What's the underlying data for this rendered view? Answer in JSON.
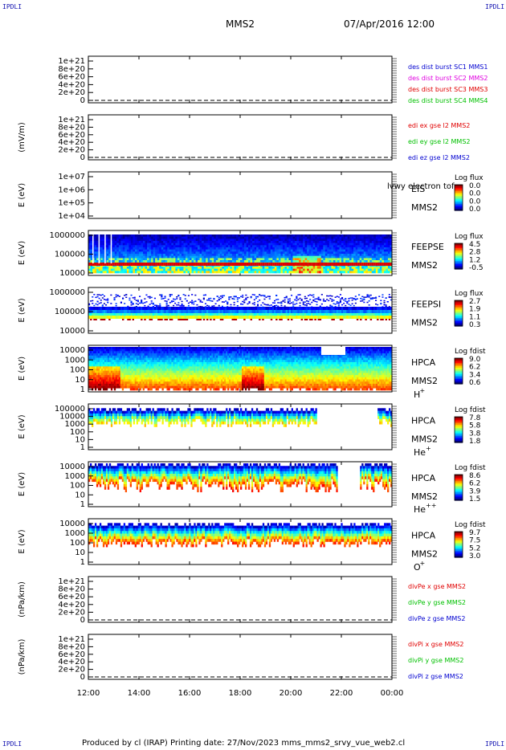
{
  "corners": {
    "tl": "IPDLI",
    "tr": "IPDLI",
    "bl": "IPDLI",
    "br": "IPDLI"
  },
  "header": {
    "spacecraft": "MMS2",
    "datetime": "07/Apr/2016 12:00"
  },
  "footer": {
    "text": "Produced by cl (IRAP)   Printing date: 27/Nov/2023   mms_mms2_srvy_vue_web2.cl"
  },
  "colors": {
    "blue": "#0000d0",
    "magenta": "#e000e0",
    "red": "#e00000",
    "green": "#00c000",
    "mms1": "#0000d0",
    "mms2": "#e000e0",
    "mms3": "#e00000",
    "mms4": "#00c000"
  },
  "chart_data": [
    {
      "id": "des_dist_burst",
      "type": "line",
      "yticks": [
        "1e+21",
        "8e+20",
        "6e+20",
        "4e+20",
        "2e+20",
        "0"
      ],
      "series": [
        {
          "name": "des dist burst SC1 MMS1",
          "color": "#0000d0",
          "values": [
            0,
            0
          ]
        },
        {
          "name": "des dist burst SC2 MMS2",
          "color": "#e000e0",
          "values": [
            0,
            0
          ]
        },
        {
          "name": "des dist burst SC3 MMS3",
          "color": "#e00000",
          "values": [
            0,
            0
          ]
        },
        {
          "name": "des dist burst SC4 MMS4",
          "color": "#00c000",
          "values": [
            0,
            0
          ]
        }
      ]
    },
    {
      "id": "edi_e",
      "type": "line",
      "ylabel": "(mV/m)",
      "yticks": [
        "1e+21",
        "8e+20",
        "6e+20",
        "4e+20",
        "2e+20",
        "0"
      ],
      "series": [
        {
          "name": "edi ex gse l2 MMS2",
          "color": "#e00000",
          "values": [
            0,
            0
          ]
        },
        {
          "name": "edi ey gse l2 MMS2",
          "color": "#00c000",
          "values": [
            0,
            0
          ]
        },
        {
          "name": "edi ez gse l2 MMS2",
          "color": "#0000d0",
          "values": [
            0,
            0
          ]
        }
      ]
    },
    {
      "id": "eis",
      "type": "heatmap",
      "ylabel": "E (eV)",
      "yticks": [
        "1e+07",
        "1e+06",
        "1e+05",
        "1e+04"
      ],
      "labels": [
        "EIS",
        "MMS2"
      ],
      "overlay": "lvwy electron tof",
      "colorbar": {
        "title": "Log flux",
        "ticks": [
          "0.0",
          "0.0",
          "0.0",
          "0.0"
        ]
      }
    },
    {
      "id": "feepse",
      "type": "heatmap",
      "ylabel": "E (eV)",
      "yticks": [
        "1000000",
        "100000",
        "10000"
      ],
      "labels": [
        "FEEPSE",
        "MMS2"
      ],
      "colorbar": {
        "title": "Log flux",
        "ticks": [
          "4.5",
          "2.8",
          "1.2",
          "-0.5"
        ]
      }
    },
    {
      "id": "feepsi",
      "type": "heatmap",
      "ylabel": "E (eV)",
      "yticks": [
        "1000000",
        "100000",
        "10000"
      ],
      "labels": [
        "FEEPSI",
        "MMS2"
      ],
      "colorbar": {
        "title": "Log flux",
        "ticks": [
          "2.7",
          "1.9",
          "1.1",
          "0.3"
        ]
      }
    },
    {
      "id": "hpca_h",
      "type": "heatmap",
      "ylabel": "E (eV)",
      "yticks": [
        "10000",
        "1000",
        "100",
        "10",
        "1"
      ],
      "labels": [
        "HPCA",
        "MMS2",
        "H"
      ],
      "species_sup": "+",
      "colorbar": {
        "title": "Log fdist",
        "ticks": [
          "9.0",
          "6.2",
          "3.4",
          "0.6"
        ]
      }
    },
    {
      "id": "hpca_he1",
      "type": "heatmap",
      "ylabel": "E (eV)",
      "yticks": [
        "100000",
        "10000",
        "1000",
        "100",
        "10",
        "1"
      ],
      "labels": [
        "HPCA",
        "MMS2",
        "He"
      ],
      "species_sup": "+",
      "colorbar": {
        "title": "Log fdist",
        "ticks": [
          "7.8",
          "5.8",
          "3.8",
          "1.8"
        ]
      }
    },
    {
      "id": "hpca_he2",
      "type": "heatmap",
      "ylabel": "E (eV)",
      "yticks": [
        "10000",
        "1000",
        "100",
        "10",
        "1"
      ],
      "labels": [
        "HPCA",
        "MMS2",
        "He"
      ],
      "species_sup": "++",
      "colorbar": {
        "title": "Log fdist",
        "ticks": [
          "8.6",
          "6.2",
          "3.9",
          "1.5"
        ]
      }
    },
    {
      "id": "hpca_o",
      "type": "heatmap",
      "ylabel": "E (eV)",
      "yticks": [
        "10000",
        "1000",
        "100",
        "10",
        "1"
      ],
      "labels": [
        "HPCA",
        "MMS2",
        "O"
      ],
      "species_sup": "+",
      "colorbar": {
        "title": "Log fdist",
        "ticks": [
          "9.7",
          "7.5",
          "5.2",
          "3.0"
        ]
      }
    },
    {
      "id": "divpe",
      "type": "line",
      "ylabel": "(nPa/km)",
      "yticks": [
        "1e+21",
        "8e+20",
        "6e+20",
        "4e+20",
        "2e+20",
        "0"
      ],
      "series": [
        {
          "name": "divPe x gse MMS2",
          "color": "#e00000",
          "values": [
            0,
            0
          ]
        },
        {
          "name": "divPe y gse MMS2",
          "color": "#00c000",
          "values": [
            0,
            0
          ]
        },
        {
          "name": "divPe z gse MMS2",
          "color": "#0000d0",
          "values": [
            0,
            0
          ]
        }
      ]
    },
    {
      "id": "divpi",
      "type": "line",
      "ylabel": "(nPa/km)",
      "yticks": [
        "1e+21",
        "8e+20",
        "6e+20",
        "4e+20",
        "2e+20",
        "0"
      ],
      "series": [
        {
          "name": "divPi x gse MMS2",
          "color": "#e00000",
          "values": [
            0,
            0
          ]
        },
        {
          "name": "divPi y gse MMS2",
          "color": "#00c000",
          "values": [
            0,
            0
          ]
        },
        {
          "name": "divPi z gse MMS2",
          "color": "#0000d0",
          "values": [
            0,
            0
          ]
        }
      ]
    }
  ],
  "xaxis": {
    "ticks": [
      "12:00",
      "14:00",
      "16:00",
      "18:00",
      "20:00",
      "22:00",
      "00:00"
    ]
  }
}
